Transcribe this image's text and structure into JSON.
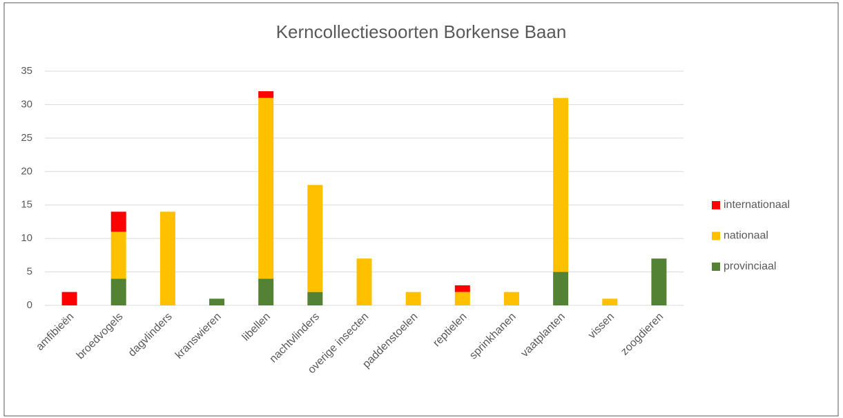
{
  "chart_data": {
    "type": "stacked_bar",
    "title": "Kerncollectiesoorten Borkense Baan",
    "categories": [
      "amfibieën",
      "broedvogels",
      "dagvlinders",
      "kranswieren",
      "libellen",
      "nachtvlinders",
      "overige insecten",
      "paddenstoelen",
      "reptielen",
      "sprinkhanen",
      "vaatplanten",
      "vissen",
      "zoogdieren"
    ],
    "series": [
      {
        "name": "provinciaal",
        "color": "#548235",
        "values": [
          0,
          4,
          0,
          1,
          4,
          2,
          0,
          0,
          0,
          0,
          5,
          0,
          7
        ]
      },
      {
        "name": "nationaal",
        "color": "#ffc000",
        "values": [
          0,
          7,
          14,
          0,
          27,
          16,
          7,
          2,
          2,
          2,
          26,
          1,
          0
        ]
      },
      {
        "name": "internationaal",
        "color": "#ff0000",
        "values": [
          2,
          3,
          0,
          0,
          1,
          0,
          0,
          0,
          1,
          0,
          0,
          0,
          0
        ]
      }
    ],
    "ylim": [
      0,
      35
    ],
    "yticks": [
      0,
      5,
      10,
      15,
      20,
      25,
      30,
      35
    ],
    "grid": true,
    "legend": "right"
  }
}
